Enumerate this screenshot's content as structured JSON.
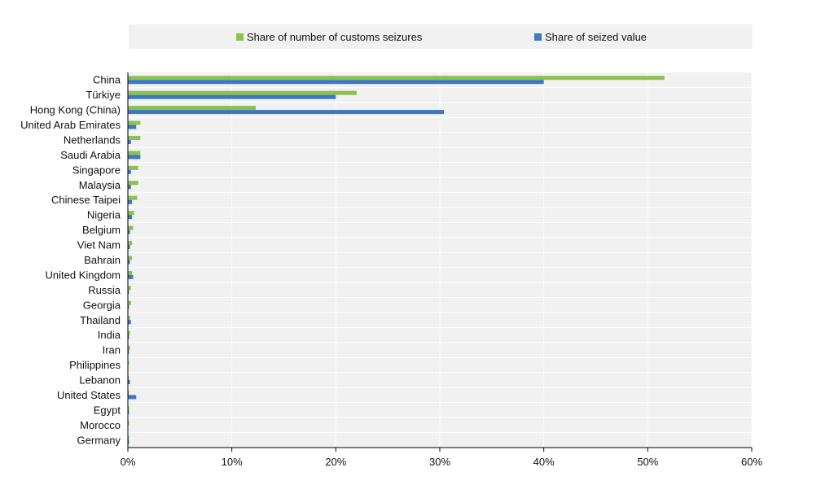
{
  "chart_data": {
    "type": "bar",
    "orientation": "horizontal",
    "categories": [
      "China",
      "Türkiye",
      "Hong Kong (China)",
      "United Arab Emirates",
      "Netherlands",
      "Saudi Arabia",
      "Singapore",
      "Malaysia",
      "Chinese Taipei",
      "Nigeria",
      "Belgium",
      "Viet Nam",
      "Bahrain",
      "United Kingdom",
      "Russia",
      "Georgia",
      "Thailand",
      "India",
      "Iran",
      "Philippines",
      "Lebanon",
      "United States",
      "Egypt",
      "Morocco",
      "Germany"
    ],
    "series": [
      {
        "name": "Share of number of customs seizures",
        "color": "#8cc151",
        "values": [
          51.6,
          22.0,
          12.3,
          1.2,
          1.2,
          1.2,
          1.0,
          1.0,
          0.9,
          0.6,
          0.5,
          0.4,
          0.4,
          0.4,
          0.3,
          0.3,
          0.2,
          0.2,
          0.2,
          0.1,
          0.1,
          0.1,
          0.1,
          0.1,
          0.1
        ]
      },
      {
        "name": "Share of seized value",
        "color": "#3c78c3",
        "values": [
          40.0,
          20.0,
          30.4,
          0.8,
          0.3,
          1.2,
          0.3,
          0.3,
          0.4,
          0.4,
          0.2,
          0.2,
          0.2,
          0.5,
          0.1,
          0.1,
          0.3,
          0.1,
          0.1,
          0.0,
          0.2,
          0.8,
          0.1,
          0.0,
          0.1
        ]
      }
    ],
    "xlim": [
      0,
      60
    ],
    "x_ticks": [
      "0%",
      "10%",
      "20%",
      "30%",
      "40%",
      "50%",
      "60%"
    ],
    "x_tick_values": [
      0,
      10,
      20,
      30,
      40,
      50,
      60
    ],
    "grid": true,
    "legend_position": "top",
    "plot_background": "#f1f1f1"
  }
}
